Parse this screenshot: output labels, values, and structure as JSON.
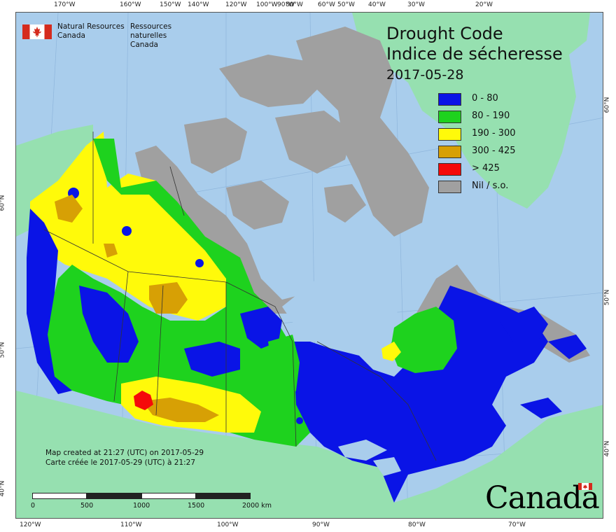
{
  "map": {
    "title_en": "Drought Code",
    "title_fr": "Indice de sécheresse",
    "date": "2017-05-28",
    "agency_en": [
      "Natural Resources",
      "Canada"
    ],
    "agency_fr": [
      "Ressources naturelles",
      "Canada"
    ],
    "wordmark": "Canada",
    "credit_en": "Map created at 21:27 (UTC) on 2017-05-29",
    "credit_fr": "Carte créée le 2017-05-29 (UTC) à 21:27",
    "scale_labels": [
      "0",
      "500",
      "1000",
      "1500",
      "2000 km"
    ],
    "top_ticks": [
      "170°W",
      "160°W",
      "150°W",
      "140°W",
      "120°W",
      "100°W",
      "90°W",
      "80°W",
      "60°W",
      "50°W",
      "40°W",
      "30°W",
      "20°W"
    ],
    "bottom_ticks": [
      "120°W",
      "110°W",
      "100°W",
      "90°W",
      "80°W",
      "70°W"
    ],
    "left_ticks": [
      "60°N",
      "50°N",
      "40°N"
    ],
    "right_ticks": [
      "60°N",
      "50°N",
      "40°N"
    ],
    "legend": [
      {
        "label": "0 - 80",
        "color": "#0a14e6"
      },
      {
        "label": "80 - 190",
        "color": "#1ed21e"
      },
      {
        "label": "190 - 300",
        "color": "#fffa0a"
      },
      {
        "label": "300 - 425",
        "color": "#d7a005"
      },
      {
        "label": "> 425",
        "color": "#f50a0a"
      },
      {
        "label": "Nil / s.o.",
        "color": "#a0a0a0"
      }
    ],
    "colors": {
      "ocean": "#a9cdec",
      "foreign_land": "#96e0b0",
      "no_data": "#a0a0a0"
    }
  }
}
